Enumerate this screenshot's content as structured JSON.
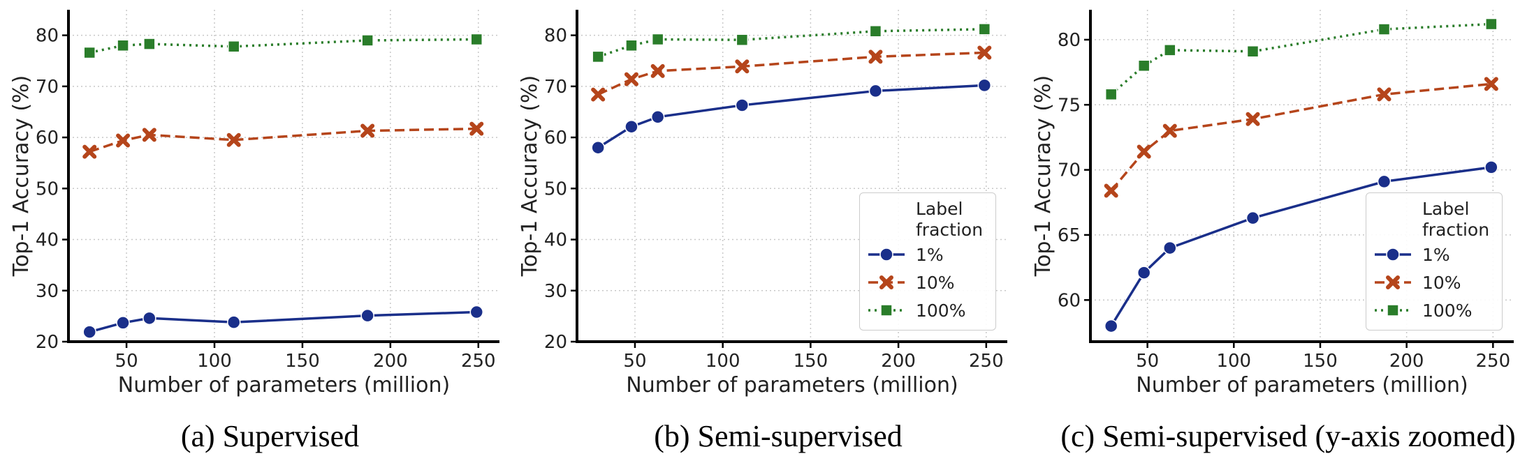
{
  "chart_data": [
    {
      "type": "line",
      "caption": "(a) Supervised",
      "xlabel": "Number of parameters (million)",
      "ylabel": "Top-1 Accuracy (%)",
      "x": [
        29,
        48,
        63,
        111,
        187,
        249
      ],
      "xlim": [
        17,
        262
      ],
      "xticks": [
        50,
        100,
        150,
        200,
        250
      ],
      "ylim": [
        20,
        85
      ],
      "yticks": [
        20,
        30,
        40,
        50,
        60,
        70,
        80
      ],
      "grid": true,
      "series": [
        {
          "color": "#1a2f8a",
          "marker": "o",
          "linestyle": "solid",
          "values": [
            21.9,
            23.7,
            24.6,
            23.8,
            25.1,
            25.8
          ]
        },
        {
          "color": "#b5451b",
          "marker": "x",
          "linestyle": "dashed",
          "values": [
            57.2,
            59.4,
            60.5,
            59.5,
            61.3,
            61.7
          ]
        },
        {
          "color": "#2a7d2a",
          "marker": "s",
          "linestyle": "dotted",
          "values": [
            76.6,
            78.0,
            78.3,
            77.8,
            79.0,
            79.2
          ]
        }
      ]
    },
    {
      "type": "line",
      "caption": "(b) Semi-supervised",
      "xlabel": "Number of parameters (million)",
      "ylabel": "Top-1 Accuracy (%)",
      "x": [
        29,
        48,
        63,
        111,
        187,
        249
      ],
      "xlim": [
        17,
        262
      ],
      "xticks": [
        50,
        100,
        150,
        200,
        250
      ],
      "ylim": [
        20,
        85
      ],
      "yticks": [
        20,
        30,
        40,
        50,
        60,
        70,
        80
      ],
      "grid": true,
      "legend": "lower right",
      "legend_title": "Label fraction",
      "series": [
        {
          "name": "1%",
          "color": "#1a2f8a",
          "marker": "o",
          "linestyle": "solid",
          "values": [
            58.0,
            62.1,
            64.0,
            66.3,
            69.1,
            70.2
          ]
        },
        {
          "name": "10%",
          "color": "#b5451b",
          "marker": "x",
          "linestyle": "dashed",
          "values": [
            68.4,
            71.4,
            73.0,
            73.9,
            75.8,
            76.6
          ]
        },
        {
          "name": "100%",
          "color": "#2a7d2a",
          "marker": "s",
          "linestyle": "dotted",
          "values": [
            75.8,
            78.0,
            79.2,
            79.1,
            80.8,
            81.2
          ]
        }
      ]
    },
    {
      "type": "line",
      "caption": "(c) Semi-supervised (y-axis zoomed)",
      "xlabel": "Number of parameters (million)",
      "ylabel": "Top-1 Accuracy (%)",
      "x": [
        29,
        48,
        63,
        111,
        187,
        249
      ],
      "xlim": [
        17,
        262
      ],
      "xticks": [
        50,
        100,
        150,
        200,
        250
      ],
      "ylim": [
        56.8,
        82.3
      ],
      "yticks": [
        60,
        65,
        70,
        75,
        80
      ],
      "grid": true,
      "legend": "lower right",
      "legend_title": "Label fraction",
      "series": [
        {
          "name": "1%",
          "color": "#1a2f8a",
          "marker": "o",
          "linestyle": "solid",
          "values": [
            58.0,
            62.1,
            64.0,
            66.3,
            69.1,
            70.2
          ]
        },
        {
          "name": "10%",
          "color": "#b5451b",
          "marker": "x",
          "linestyle": "dashed",
          "values": [
            68.4,
            71.4,
            73.0,
            73.9,
            75.8,
            76.6
          ]
        },
        {
          "name": "100%",
          "color": "#2a7d2a",
          "marker": "s",
          "linestyle": "dotted",
          "values": [
            75.8,
            78.0,
            79.2,
            79.1,
            80.8,
            81.2
          ]
        }
      ]
    }
  ]
}
